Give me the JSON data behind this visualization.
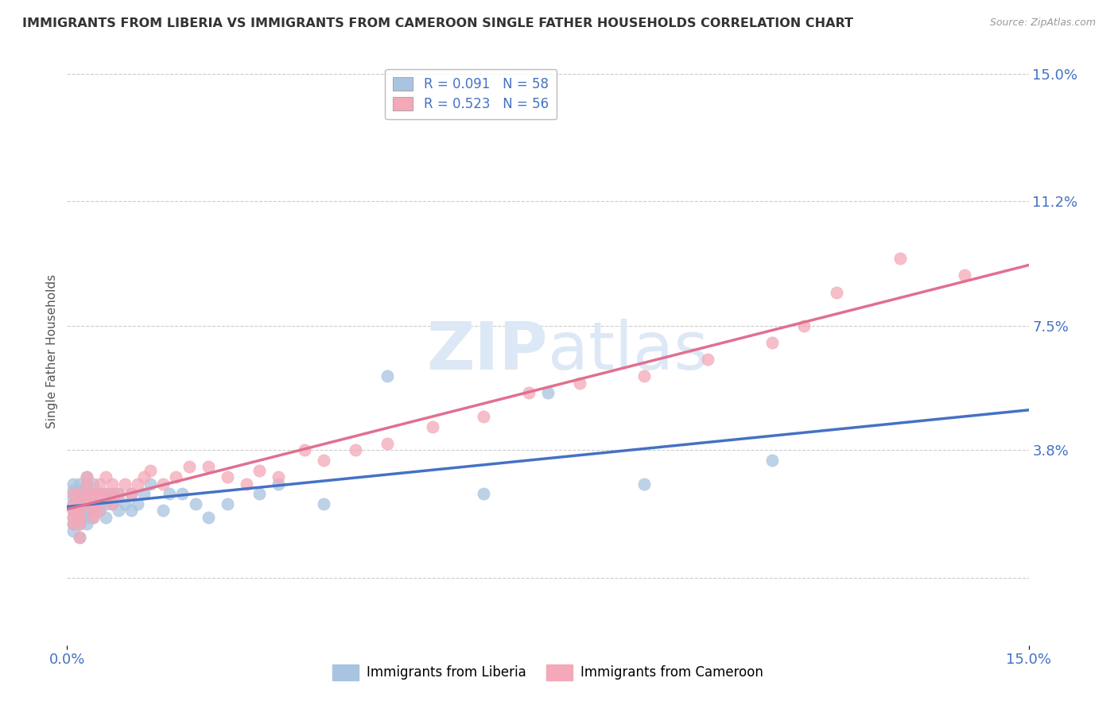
{
  "title": "IMMIGRANTS FROM LIBERIA VS IMMIGRANTS FROM CAMEROON SINGLE FATHER HOUSEHOLDS CORRELATION CHART",
  "source": "Source: ZipAtlas.com",
  "ylabel": "Single Father Households",
  "xmin": 0.0,
  "xmax": 0.15,
  "ymin": -0.02,
  "ymax": 0.155,
  "yticks": [
    0.0,
    0.038,
    0.075,
    0.112,
    0.15
  ],
  "ytick_labels": [
    "",
    "3.8%",
    "7.5%",
    "11.2%",
    "15.0%"
  ],
  "xticks": [
    0.0,
    0.15
  ],
  "xtick_labels": [
    "0.0%",
    "15.0%"
  ],
  "liberia_R": 0.091,
  "liberia_N": 58,
  "cameroon_R": 0.523,
  "cameroon_N": 56,
  "liberia_color": "#a8c4e0",
  "cameroon_color": "#f4a8b8",
  "liberia_line_color": "#4472c4",
  "cameroon_line_color": "#e07090",
  "background_color": "#ffffff",
  "liberia_x": [
    0.001,
    0.001,
    0.001,
    0.001,
    0.001,
    0.001,
    0.001,
    0.001,
    0.002,
    0.002,
    0.002,
    0.002,
    0.002,
    0.002,
    0.002,
    0.002,
    0.003,
    0.003,
    0.003,
    0.003,
    0.003,
    0.003,
    0.003,
    0.004,
    0.004,
    0.004,
    0.004,
    0.004,
    0.005,
    0.005,
    0.005,
    0.006,
    0.006,
    0.006,
    0.007,
    0.007,
    0.008,
    0.008,
    0.009,
    0.01,
    0.01,
    0.011,
    0.012,
    0.013,
    0.015,
    0.016,
    0.018,
    0.02,
    0.022,
    0.025,
    0.03,
    0.033,
    0.04,
    0.05,
    0.065,
    0.075,
    0.09,
    0.11
  ],
  "liberia_y": [
    0.02,
    0.022,
    0.024,
    0.026,
    0.028,
    0.018,
    0.016,
    0.014,
    0.02,
    0.022,
    0.024,
    0.026,
    0.028,
    0.018,
    0.016,
    0.012,
    0.02,
    0.022,
    0.025,
    0.028,
    0.018,
    0.016,
    0.03,
    0.022,
    0.025,
    0.028,
    0.02,
    0.018,
    0.022,
    0.025,
    0.02,
    0.022,
    0.025,
    0.018,
    0.022,
    0.025,
    0.02,
    0.025,
    0.022,
    0.02,
    0.025,
    0.022,
    0.025,
    0.028,
    0.02,
    0.025,
    0.025,
    0.022,
    0.018,
    0.022,
    0.025,
    0.028,
    0.022,
    0.06,
    0.025,
    0.055,
    0.028,
    0.035
  ],
  "cameroon_x": [
    0.001,
    0.001,
    0.001,
    0.001,
    0.001,
    0.002,
    0.002,
    0.002,
    0.002,
    0.002,
    0.002,
    0.003,
    0.003,
    0.003,
    0.003,
    0.004,
    0.004,
    0.004,
    0.004,
    0.005,
    0.005,
    0.005,
    0.006,
    0.006,
    0.007,
    0.007,
    0.007,
    0.008,
    0.009,
    0.01,
    0.011,
    0.012,
    0.013,
    0.015,
    0.017,
    0.019,
    0.022,
    0.025,
    0.028,
    0.03,
    0.033,
    0.037,
    0.04,
    0.045,
    0.05,
    0.057,
    0.065,
    0.072,
    0.08,
    0.09,
    0.1,
    0.11,
    0.115,
    0.12,
    0.13,
    0.14
  ],
  "cameroon_y": [
    0.02,
    0.022,
    0.025,
    0.018,
    0.016,
    0.02,
    0.022,
    0.025,
    0.018,
    0.016,
    0.012,
    0.022,
    0.025,
    0.028,
    0.03,
    0.02,
    0.025,
    0.018,
    0.022,
    0.025,
    0.028,
    0.02,
    0.025,
    0.03,
    0.022,
    0.025,
    0.028,
    0.025,
    0.028,
    0.025,
    0.028,
    0.03,
    0.032,
    0.028,
    0.03,
    0.033,
    0.033,
    0.03,
    0.028,
    0.032,
    0.03,
    0.038,
    0.035,
    0.038,
    0.04,
    0.045,
    0.048,
    0.055,
    0.058,
    0.06,
    0.065,
    0.07,
    0.075,
    0.085,
    0.095,
    0.09
  ]
}
